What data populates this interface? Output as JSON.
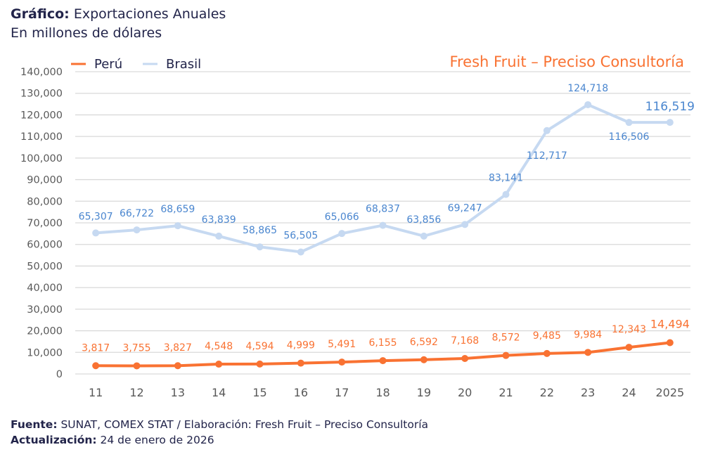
{
  "header": {
    "title_bold": "Gráfico:",
    "title_rest": "Exportaciones Anuales",
    "subtitle": "En millones de dólares"
  },
  "brand": "Fresh Fruit – Preciso Consultoría",
  "footer": {
    "source_label": "Fuente:",
    "source_text": "SUNAT, COMEX STAT / Elaboración: Fresh Fruit – Preciso Consultoría",
    "update_label": "Actualización:",
    "update_text": "24 de enero de 2026"
  },
  "colors": {
    "peru": "#f97232",
    "brasil": "#c6d9f1",
    "brasil_label": "#4a86cf",
    "grid": "#d9d9d9",
    "text_dark": "#22244a"
  },
  "chart_data": {
    "type": "line",
    "title": "Exportaciones Anuales",
    "subtitle": "En millones de dólares",
    "xlabel": "",
    "ylabel": "",
    "x": [
      "11",
      "12",
      "13",
      "14",
      "15",
      "16",
      "17",
      "18",
      "19",
      "20",
      "21",
      "22",
      "23",
      "24",
      "2025"
    ],
    "series": [
      {
        "name": "Perú",
        "values": [
          3817,
          3755,
          3827,
          4548,
          4594,
          4999,
          5491,
          6155,
          6592,
          7168,
          8572,
          9485,
          9984,
          12343,
          14494
        ],
        "labels": [
          "3,817",
          "3,755",
          "3,827",
          "4,548",
          "4,594",
          "4,999",
          "5,491",
          "6,155",
          "6,592",
          "7,168",
          "8,572",
          "9,485",
          "9,984",
          "12,343",
          "14,494"
        ]
      },
      {
        "name": "Brasil",
        "values": [
          65307,
          66722,
          68659,
          63839,
          58865,
          56505,
          65066,
          68837,
          63856,
          69247,
          83141,
          112717,
          124718,
          116506,
          116519
        ],
        "labels": [
          "65,307",
          "66,722",
          "68,659",
          "63,839",
          "58,865",
          "56,505",
          "65,066",
          "68,837",
          "63,856",
          "69,247",
          "83,141",
          "112,717",
          "124,718",
          "116,506",
          "116,519"
        ]
      }
    ],
    "ylim": [
      0,
      140000
    ],
    "yticks": [
      0,
      10000,
      20000,
      30000,
      40000,
      50000,
      60000,
      70000,
      80000,
      90000,
      100000,
      110000,
      120000,
      130000,
      140000
    ],
    "ytick_labels": [
      "0",
      "10,000",
      "20,000",
      "30,000",
      "40,000",
      "50,000",
      "60,000",
      "70,000",
      "80,000",
      "90,000",
      "100,000",
      "110,000",
      "120,000",
      "130,000",
      "140,000"
    ],
    "grid": true,
    "legend": "top-left"
  }
}
